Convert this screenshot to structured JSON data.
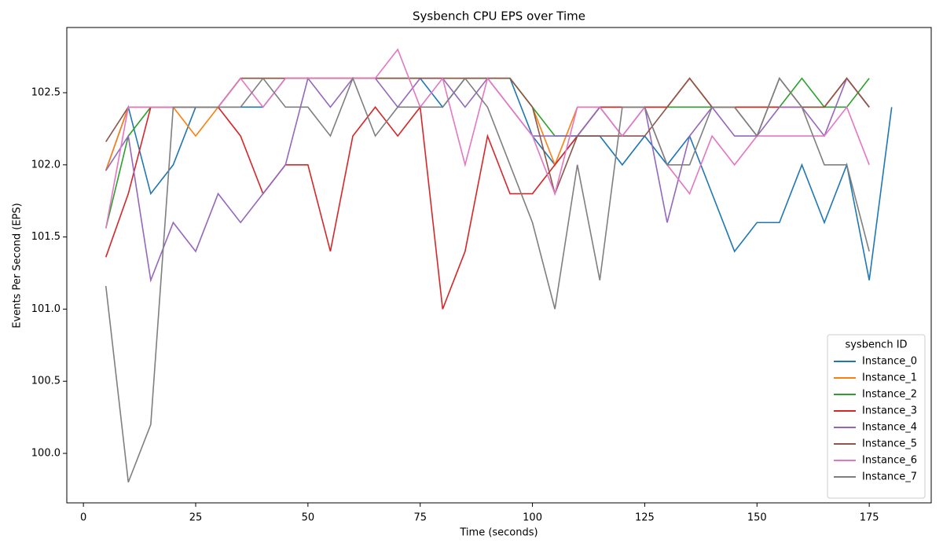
{
  "chart_data": {
    "type": "line",
    "title": "Sysbench CPU EPS over Time",
    "x_label": "Time (seconds)",
    "y_label": "Events Per Second (EPS)",
    "legend_title": "sysbench ID",
    "legend": "lower right",
    "x": [
      5,
      10,
      15,
      20,
      25,
      30,
      35,
      40,
      45,
      50,
      55,
      60,
      65,
      70,
      75,
      80,
      85,
      90,
      95,
      100,
      105,
      110,
      115,
      120,
      125,
      130,
      135,
      140,
      145,
      150,
      155,
      160,
      165,
      170,
      175,
      180
    ],
    "xlim": [
      -3.7,
      188.8
    ],
    "xticks": [
      0,
      25,
      50,
      75,
      100,
      125,
      150,
      175
    ],
    "ylim": [
      99.657,
      102.952
    ],
    "yticks": [
      {
        "value": 100.0,
        "label": "100.0"
      },
      {
        "value": 100.5,
        "label": "100.5"
      },
      {
        "value": 101.0,
        "label": "101.0"
      },
      {
        "value": 101.5,
        "label": "101.5"
      },
      {
        "value": 102.0,
        "label": "102.0"
      },
      {
        "value": 102.5,
        "label": "102.5"
      }
    ],
    "series": [
      {
        "name": "Instance_0",
        "color": "#1f77b4",
        "values": [
          101.96,
          102.4,
          101.8,
          102.0,
          102.4,
          102.4,
          102.4,
          102.4,
          102.6,
          102.6,
          102.6,
          102.6,
          102.6,
          102.6,
          102.6,
          102.4,
          102.6,
          102.6,
          102.6,
          102.2,
          102.0,
          102.2,
          102.2,
          102.0,
          102.2,
          102.0,
          102.2,
          101.8,
          101.4,
          101.6,
          101.6,
          102.0,
          101.6,
          102.0,
          101.2,
          102.4
        ]
      },
      {
        "name": "Instance_1",
        "color": "#ff7f0e",
        "values": [
          101.96,
          102.4,
          102.4,
          102.4,
          102.2,
          102.4,
          102.6,
          102.6,
          102.6,
          102.6,
          102.6,
          102.6,
          102.6,
          102.6,
          102.6,
          102.6,
          102.6,
          102.6,
          102.6,
          102.4,
          102.0,
          102.4,
          102.4,
          102.4,
          102.4,
          102.4,
          102.6,
          102.4,
          102.4,
          102.4,
          102.4,
          102.4,
          102.4,
          102.6,
          102.4,
          null
        ]
      },
      {
        "name": "Instance_2",
        "color": "#2ca02c",
        "values": [
          101.56,
          102.2,
          102.4,
          102.4,
          102.4,
          102.4,
          102.6,
          102.6,
          102.6,
          102.6,
          102.6,
          102.6,
          102.6,
          102.6,
          102.6,
          102.6,
          102.6,
          102.6,
          102.6,
          102.4,
          102.2,
          102.2,
          102.4,
          102.4,
          102.4,
          102.4,
          102.4,
          102.4,
          102.4,
          102.4,
          102.4,
          102.6,
          102.4,
          102.4,
          102.6,
          null
        ]
      },
      {
        "name": "Instance_3",
        "color": "#d62728",
        "values": [
          101.36,
          101.8,
          102.4,
          102.4,
          102.4,
          102.4,
          102.2,
          101.8,
          102.0,
          102.0,
          101.4,
          102.2,
          102.4,
          102.2,
          102.4,
          101.0,
          101.4,
          102.2,
          101.8,
          101.8,
          102.0,
          102.2,
          102.4,
          102.4,
          102.4,
          102.4,
          102.6,
          102.4,
          102.4,
          102.4,
          102.4,
          102.4,
          102.4,
          102.6,
          102.4,
          null
        ]
      },
      {
        "name": "Instance_4",
        "color": "#9467bd",
        "values": [
          101.96,
          102.2,
          101.2,
          101.6,
          101.4,
          101.8,
          101.6,
          101.8,
          102.0,
          102.6,
          102.4,
          102.6,
          102.6,
          102.4,
          102.6,
          102.6,
          102.4,
          102.6,
          102.4,
          102.2,
          102.2,
          102.2,
          102.4,
          102.2,
          102.4,
          101.6,
          102.2,
          102.4,
          102.2,
          102.2,
          102.4,
          102.4,
          102.2,
          102.6,
          102.4,
          null
        ]
      },
      {
        "name": "Instance_5",
        "color": "#8c564b",
        "values": [
          102.16,
          102.4,
          102.4,
          102.4,
          102.4,
          102.4,
          102.6,
          102.6,
          102.6,
          102.6,
          102.6,
          102.6,
          102.6,
          102.6,
          102.6,
          102.6,
          102.6,
          102.6,
          102.6,
          102.4,
          101.8,
          102.2,
          102.2,
          102.2,
          102.2,
          102.4,
          102.6,
          102.4,
          102.4,
          102.2,
          102.6,
          102.4,
          102.4,
          102.6,
          102.4,
          null
        ]
      },
      {
        "name": "Instance_6",
        "color": "#e377c2",
        "values": [
          101.56,
          102.4,
          102.4,
          102.4,
          102.4,
          102.4,
          102.6,
          102.4,
          102.6,
          102.6,
          102.6,
          102.6,
          102.6,
          102.8,
          102.4,
          102.6,
          102.0,
          102.6,
          102.4,
          102.2,
          101.8,
          102.4,
          102.4,
          102.2,
          102.4,
          102.0,
          101.8,
          102.2,
          102.0,
          102.2,
          102.2,
          102.2,
          102.2,
          102.4,
          102.0,
          null
        ]
      },
      {
        "name": "Instance_7",
        "color": "#7f7f7f",
        "values": [
          101.16,
          99.8,
          100.2,
          102.4,
          102.4,
          102.4,
          102.4,
          102.6,
          102.4,
          102.4,
          102.2,
          102.6,
          102.2,
          102.4,
          102.4,
          102.4,
          102.6,
          102.4,
          102.0,
          101.6,
          101.0,
          102.0,
          101.2,
          102.4,
          102.4,
          102.0,
          102.0,
          102.4,
          102.4,
          102.2,
          102.6,
          102.4,
          102.0,
          102.0,
          101.4,
          null
        ]
      }
    ]
  }
}
